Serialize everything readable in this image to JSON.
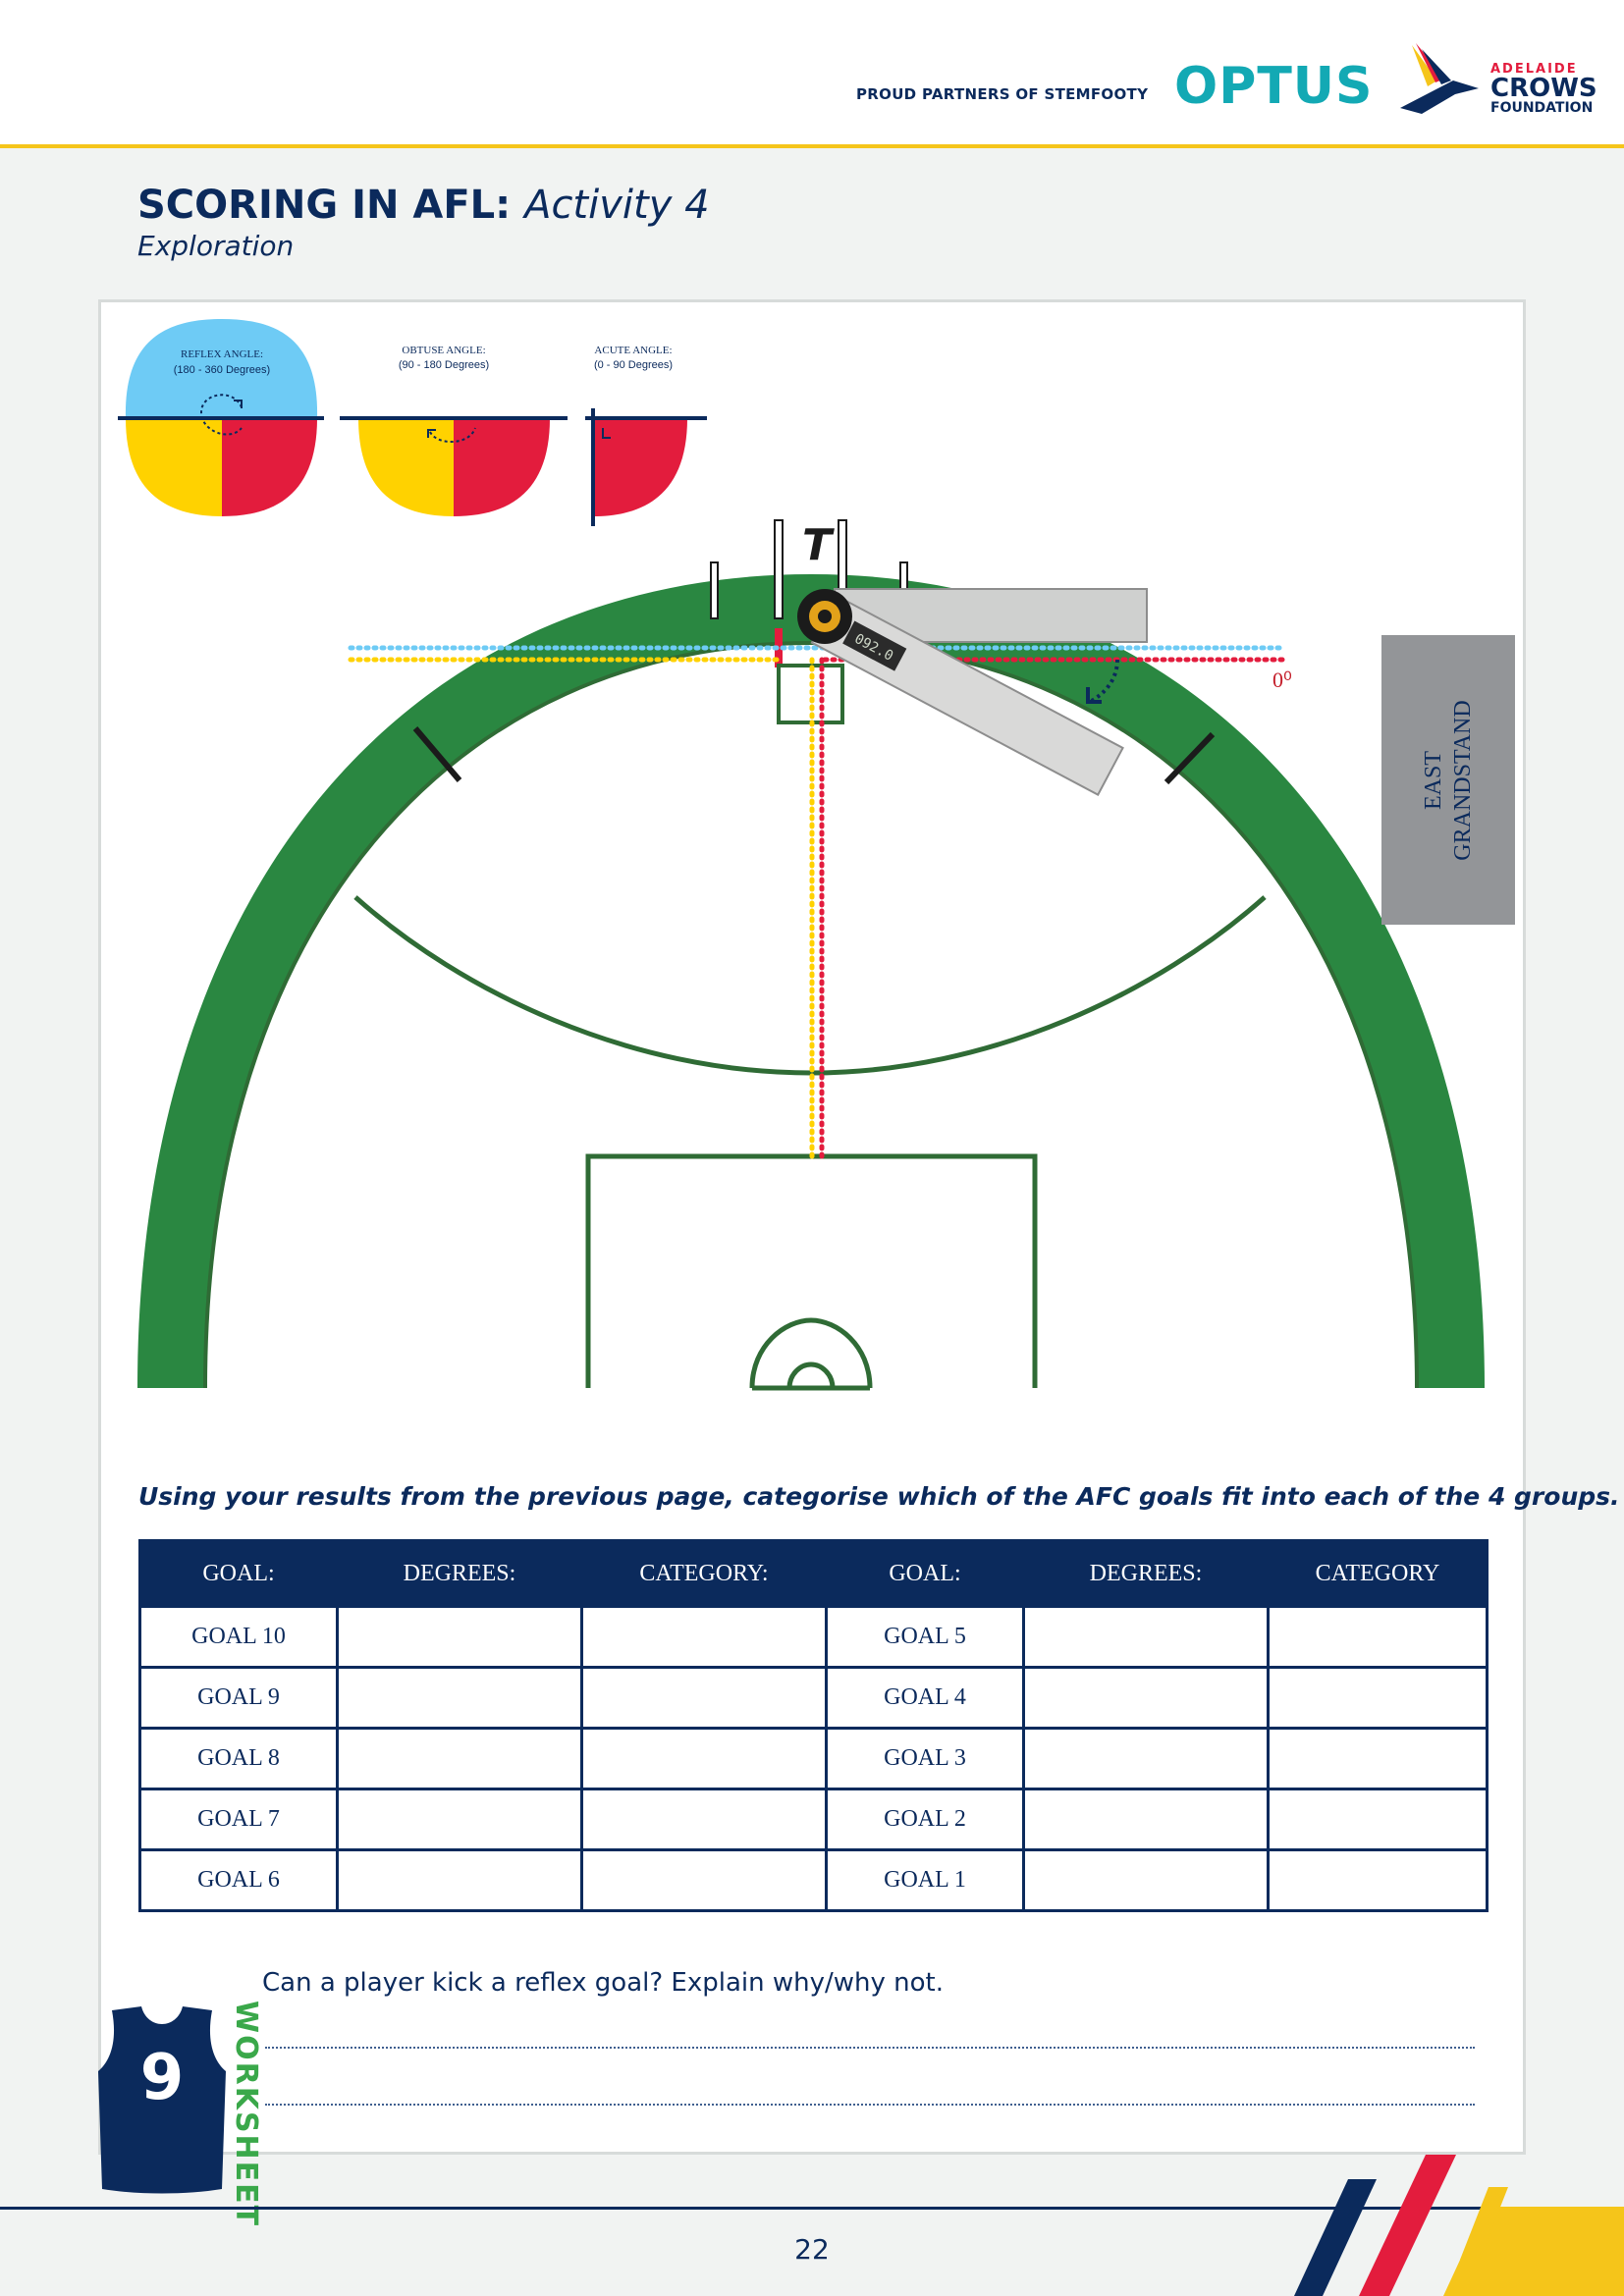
{
  "header": {
    "partners_text": "PROUD PARTNERS OF STEMFOOTY",
    "optus_logo": "OPTUS",
    "crows_line1": "ADELAIDE",
    "crows_line2": "CROWS",
    "crows_line3": "FOUNDATION"
  },
  "page": {
    "title_bold": "SCORING IN AFL:",
    "title_italic": "Activity 4",
    "subtitle": "Exploration",
    "page_number": "22"
  },
  "diagram": {
    "reflex_label": "REFLEX ANGLE:",
    "reflex_range": "(180 - 360 Degrees)",
    "obtuse_label": "OBTUSE ANGLE:",
    "obtuse_range": "(90 - 180 Degrees)",
    "acute_label": "ACUTE ANGLE:",
    "acute_range": "(0 - 90 Degrees)",
    "goal_letter": "T",
    "zero_label": "0⁰",
    "grandstand_line1": "EAST",
    "grandstand_line2": "GRANDSTAND",
    "protractor_readout": "092.0",
    "colors": {
      "field_green": "#2a8741",
      "line_green": "#2f6b35",
      "reflex_blue": "#6ecbf5",
      "obtuse_yellow": "#ffd200",
      "acute_red": "#e31c3d",
      "navy": "#0b2a5c",
      "grandstand_grey": "#939598"
    }
  },
  "instruction": "Using your results from the previous page, categorise which of the AFC goals fit into each of the 4 groups.",
  "table": {
    "headers": [
      "GOAL:",
      "DEGREES:",
      "CATEGORY:",
      "GOAL:",
      "DEGREES:",
      "CATEGORY"
    ],
    "rows": [
      [
        "GOAL 10",
        "",
        "",
        "GOAL 5",
        "",
        ""
      ],
      [
        "GOAL 9",
        "",
        "",
        "GOAL 4",
        "",
        ""
      ],
      [
        "GOAL 8",
        "",
        "",
        "GOAL 3",
        "",
        ""
      ],
      [
        "GOAL 7",
        "",
        "",
        "GOAL 2",
        "",
        ""
      ],
      [
        "GOAL 6",
        "",
        "",
        "GOAL 1",
        "",
        ""
      ]
    ]
  },
  "question": "Can a player kick a reflex goal? Explain why/why not.",
  "worksheet": {
    "label": "WORKSHEET",
    "jersey_number": "9"
  }
}
